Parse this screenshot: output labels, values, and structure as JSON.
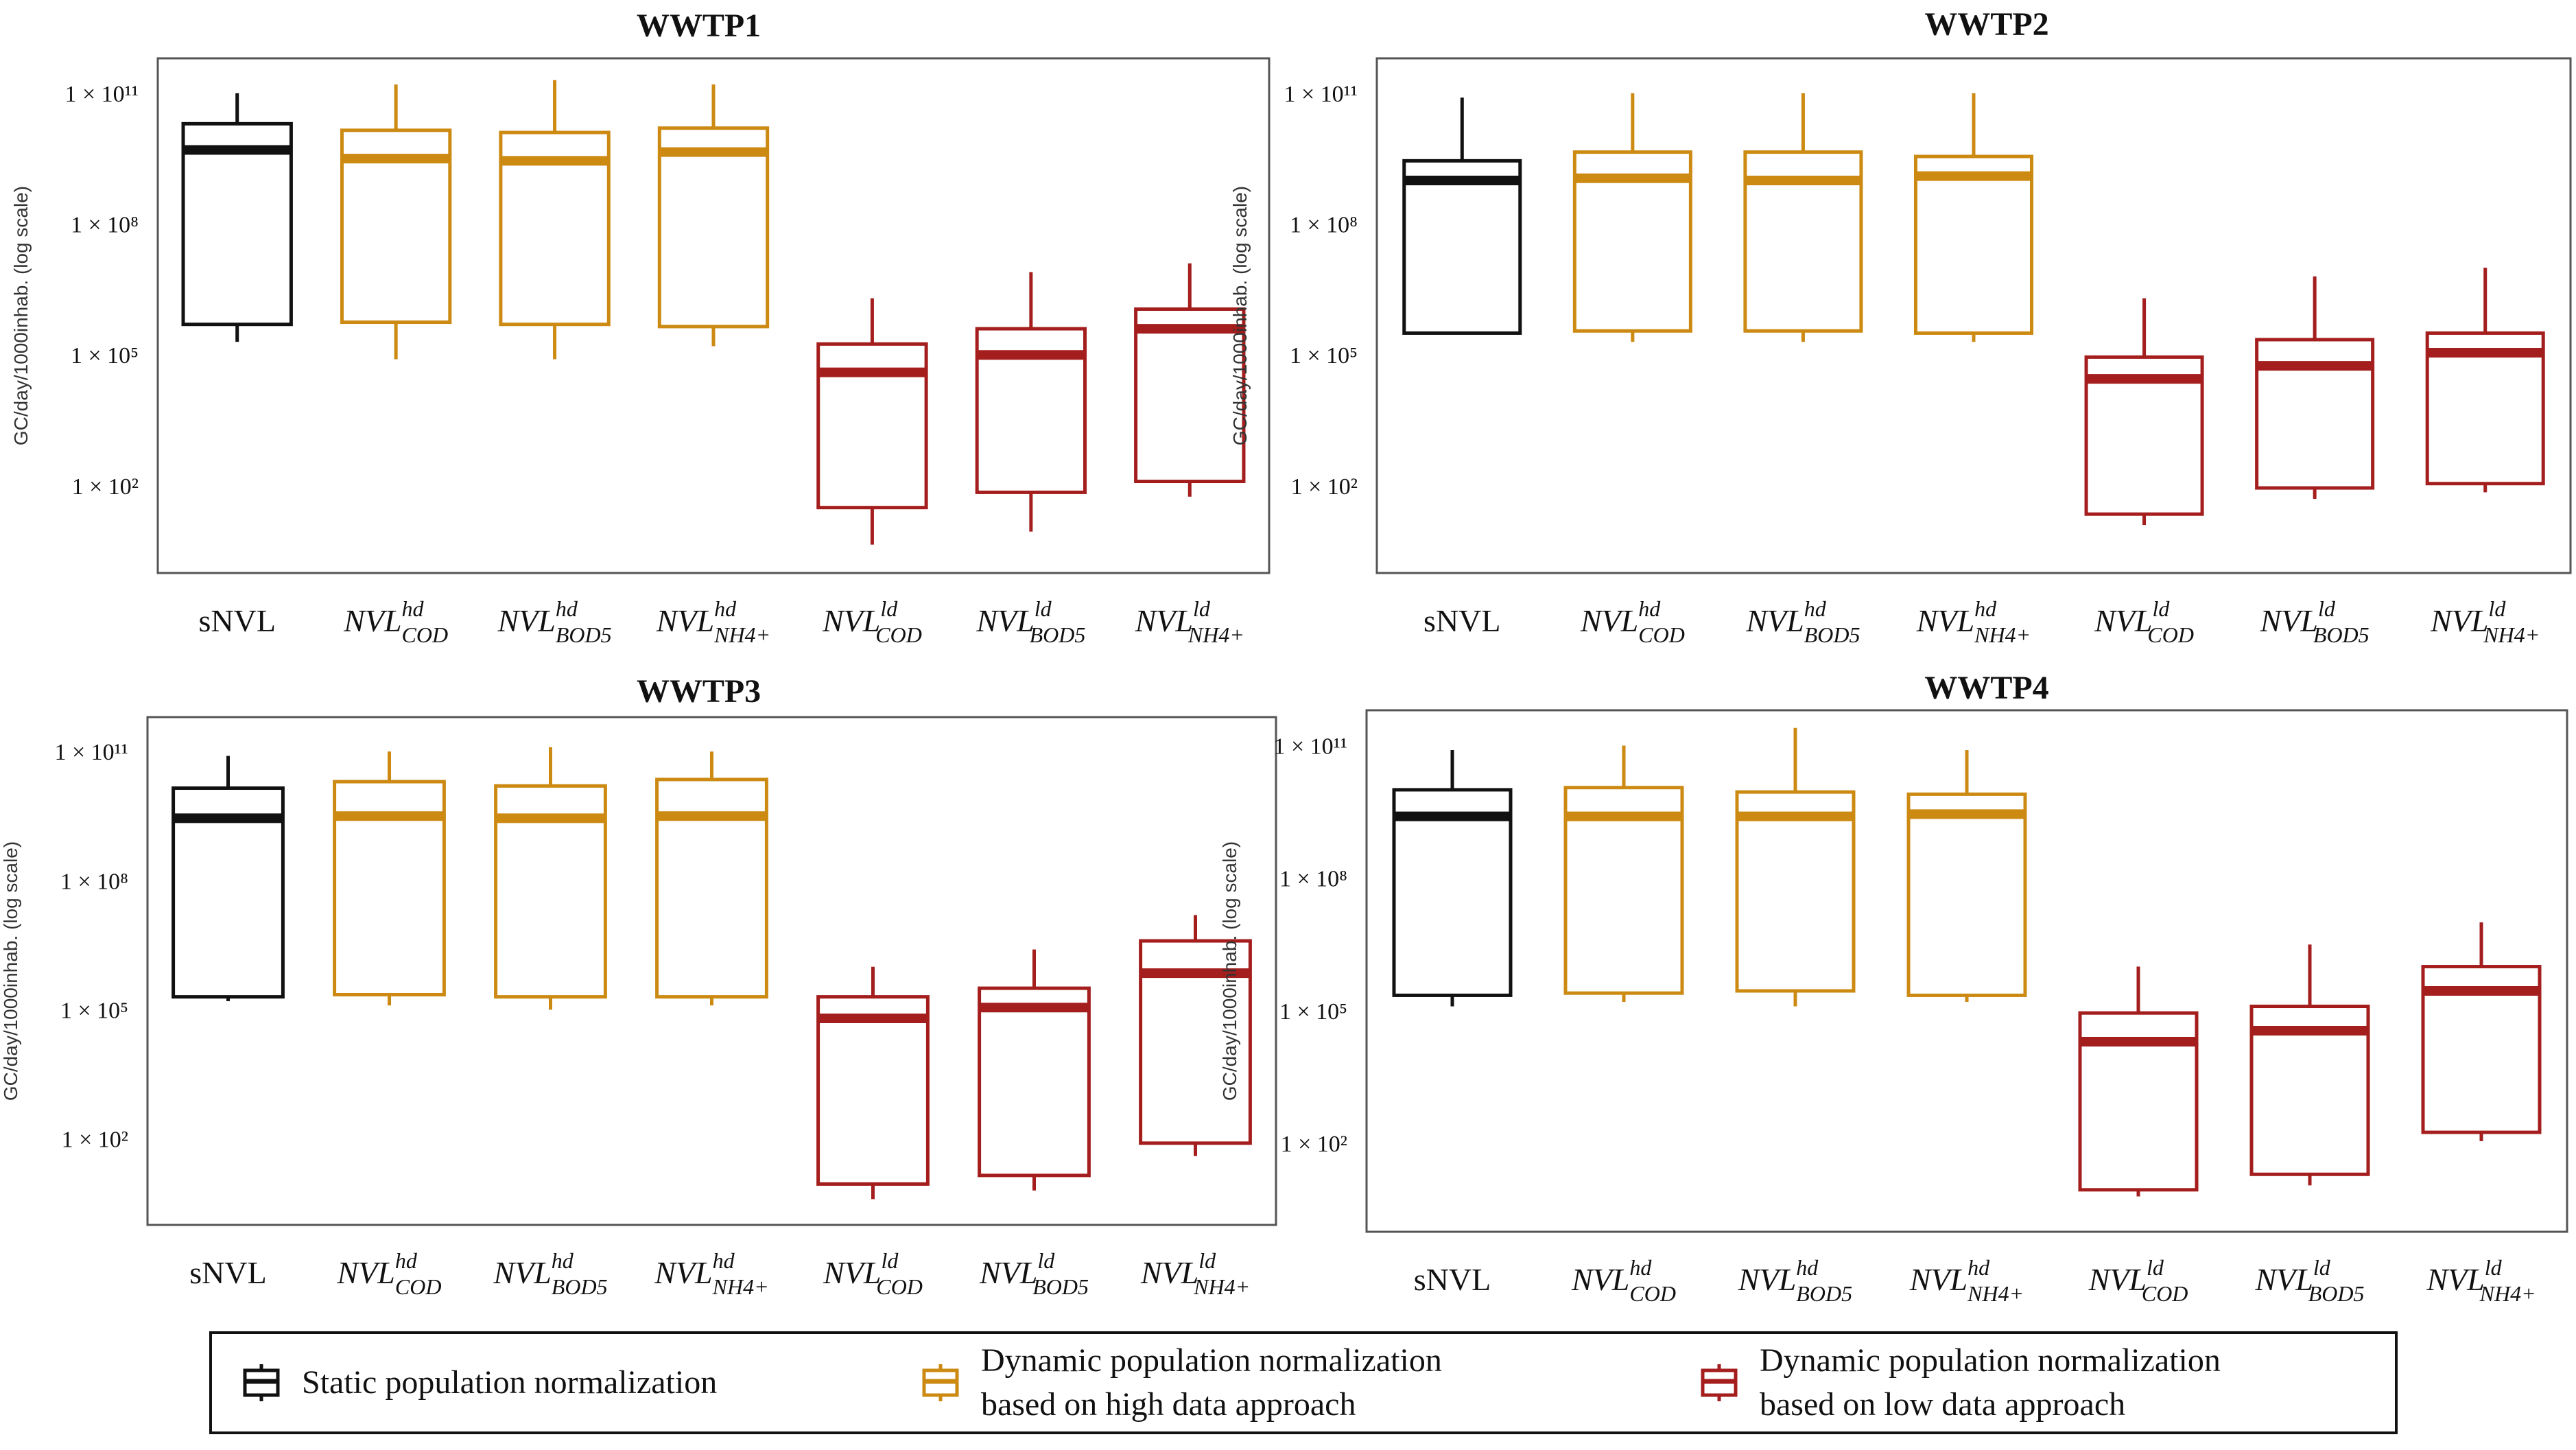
{
  "colors": {
    "static": "#111111",
    "high": "#CC8A12",
    "low": "#A51E1E",
    "axis": "#555555"
  },
  "chart_data": [
    {
      "type": "box",
      "title": "WWTP1",
      "ylabel": "GC/day/1000inhab. (log scale)",
      "yscale": "log10",
      "ylim_log10": [
        0.0,
        11.8
      ],
      "ytick_values_log10": [
        11,
        8,
        5,
        2
      ],
      "ytick_labels": [
        "1 × 10¹¹",
        "1 × 10⁸",
        "1 × 10⁵",
        "1 × 10²"
      ],
      "legend_position": "bottom",
      "categories": [
        {
          "base": "sNVL",
          "sup": "",
          "sub": "",
          "group": "static"
        },
        {
          "base": "NVL",
          "sup": "hd",
          "sub": "COD",
          "group": "high"
        },
        {
          "base": "NVL",
          "sup": "hd",
          "sub": "BOD5",
          "group": "high"
        },
        {
          "base": "NVL",
          "sup": "hd",
          "sub": "NH4+",
          "group": "high"
        },
        {
          "base": "NVL",
          "sup": "ld",
          "sub": "COD",
          "group": "low"
        },
        {
          "base": "NVL",
          "sup": "ld",
          "sub": "BOD5",
          "group": "low"
        },
        {
          "base": "NVL",
          "sup": "ld",
          "sub": "NH4+",
          "group": "low"
        }
      ],
      "series_log10": [
        {
          "whisker_low": 5.3,
          "q1": 5.7,
          "median": 9.7,
          "q3": 10.3,
          "whisker_high": 11.0
        },
        {
          "whisker_low": 4.9,
          "q1": 5.75,
          "median": 9.5,
          "q3": 10.15,
          "whisker_high": 11.2
        },
        {
          "whisker_low": 4.9,
          "q1": 5.7,
          "median": 9.45,
          "q3": 10.1,
          "whisker_high": 11.3
        },
        {
          "whisker_low": 5.2,
          "q1": 5.65,
          "median": 9.65,
          "q3": 10.2,
          "whisker_high": 11.2
        },
        {
          "whisker_low": 0.65,
          "q1": 1.5,
          "median": 4.6,
          "q3": 5.25,
          "whisker_high": 6.3
        },
        {
          "whisker_low": 0.95,
          "q1": 1.85,
          "median": 5.0,
          "q3": 5.6,
          "whisker_high": 6.9
        },
        {
          "whisker_low": 1.75,
          "q1": 2.1,
          "median": 5.6,
          "q3": 6.05,
          "whisker_high": 7.1
        }
      ]
    },
    {
      "type": "box",
      "title": "WWTP2",
      "ylabel": "GC/day/1000inhab. (log scale)",
      "yscale": "log10",
      "ylim_log10": [
        0.0,
        11.8
      ],
      "ytick_values_log10": [
        11,
        8,
        5,
        2
      ],
      "ytick_labels": [
        "1 × 10¹¹",
        "1 × 10⁸",
        "1 × 10⁵",
        "1 × 10²"
      ],
      "legend_position": "bottom",
      "categories": [
        {
          "base": "sNVL",
          "sup": "",
          "sub": "",
          "group": "static"
        },
        {
          "base": "NVL",
          "sup": "hd",
          "sub": "COD",
          "group": "high"
        },
        {
          "base": "NVL",
          "sup": "hd",
          "sub": "BOD5",
          "group": "high"
        },
        {
          "base": "NVL",
          "sup": "hd",
          "sub": "NH4+",
          "group": "high"
        },
        {
          "base": "NVL",
          "sup": "ld",
          "sub": "COD",
          "group": "low"
        },
        {
          "base": "NVL",
          "sup": "ld",
          "sub": "BOD5",
          "group": "low"
        },
        {
          "base": "NVL",
          "sup": "ld",
          "sub": "NH4+",
          "group": "low"
        }
      ],
      "series_log10": [
        {
          "whisker_low": 5.5,
          "q1": 5.5,
          "median": 9.0,
          "q3": 9.45,
          "whisker_high": 10.9
        },
        {
          "whisker_low": 5.3,
          "q1": 5.55,
          "median": 9.05,
          "q3": 9.65,
          "whisker_high": 11.0
        },
        {
          "whisker_low": 5.3,
          "q1": 5.55,
          "median": 9.0,
          "q3": 9.65,
          "whisker_high": 11.0
        },
        {
          "whisker_low": 5.3,
          "q1": 5.5,
          "median": 9.1,
          "q3": 9.55,
          "whisker_high": 11.0
        },
        {
          "whisker_low": 1.1,
          "q1": 1.35,
          "median": 4.45,
          "q3": 4.95,
          "whisker_high": 6.3
        },
        {
          "whisker_low": 1.7,
          "q1": 1.95,
          "median": 4.75,
          "q3": 5.35,
          "whisker_high": 6.8
        },
        {
          "whisker_low": 1.85,
          "q1": 2.05,
          "median": 5.05,
          "q3": 5.5,
          "whisker_high": 7.0
        }
      ]
    },
    {
      "type": "box",
      "title": "WWTP3",
      "ylabel": "GC/day/1000inhab. (log scale)",
      "yscale": "log10",
      "ylim_log10": [
        0.0,
        11.8
      ],
      "ytick_values_log10": [
        11,
        8,
        5,
        2
      ],
      "ytick_labels": [
        "1 × 10¹¹",
        "1 × 10⁸",
        "1 × 10⁵",
        "1 × 10²"
      ],
      "legend_position": "bottom",
      "categories": [
        {
          "base": "sNVL",
          "sup": "",
          "sub": "",
          "group": "static"
        },
        {
          "base": "NVL",
          "sup": "hd",
          "sub": "COD",
          "group": "high"
        },
        {
          "base": "NVL",
          "sup": "hd",
          "sub": "BOD5",
          "group": "high"
        },
        {
          "base": "NVL",
          "sup": "hd",
          "sub": "NH4+",
          "group": "high"
        },
        {
          "base": "NVL",
          "sup": "ld",
          "sub": "COD",
          "group": "low"
        },
        {
          "base": "NVL",
          "sup": "ld",
          "sub": "BOD5",
          "group": "low"
        },
        {
          "base": "NVL",
          "sup": "ld",
          "sub": "NH4+",
          "group": "low"
        }
      ],
      "series_log10": [
        {
          "whisker_low": 5.2,
          "q1": 5.3,
          "median": 9.45,
          "q3": 10.15,
          "whisker_high": 10.9
        },
        {
          "whisker_low": 5.1,
          "q1": 5.35,
          "median": 9.5,
          "q3": 10.3,
          "whisker_high": 11.0
        },
        {
          "whisker_low": 5.0,
          "q1": 5.3,
          "median": 9.45,
          "q3": 10.2,
          "whisker_high": 11.1
        },
        {
          "whisker_low": 5.1,
          "q1": 5.3,
          "median": 9.5,
          "q3": 10.35,
          "whisker_high": 11.0
        },
        {
          "whisker_low": 0.6,
          "q1": 0.95,
          "median": 4.8,
          "q3": 5.3,
          "whisker_high": 6.0
        },
        {
          "whisker_low": 0.8,
          "q1": 1.15,
          "median": 5.05,
          "q3": 5.5,
          "whisker_high": 6.4
        },
        {
          "whisker_low": 1.6,
          "q1": 1.9,
          "median": 5.85,
          "q3": 6.6,
          "whisker_high": 7.2
        }
      ]
    },
    {
      "type": "box",
      "title": "WWTP4",
      "ylabel": "GC/day/1000inhab. (log scale)",
      "yscale": "log10",
      "ylim_log10": [
        0.0,
        11.8
      ],
      "ytick_values_log10": [
        11,
        8,
        5,
        2
      ],
      "ytick_labels": [
        "1 × 10¹¹",
        "1 × 10⁸",
        "1 × 10⁵",
        "1 × 10²"
      ],
      "legend_position": "bottom",
      "categories": [
        {
          "base": "sNVL",
          "sup": "",
          "sub": "",
          "group": "static"
        },
        {
          "base": "NVL",
          "sup": "hd",
          "sub": "COD",
          "group": "high"
        },
        {
          "base": "NVL",
          "sup": "hd",
          "sub": "BOD5",
          "group": "high"
        },
        {
          "base": "NVL",
          "sup": "hd",
          "sub": "NH4+",
          "group": "high"
        },
        {
          "base": "NVL",
          "sup": "ld",
          "sub": "COD",
          "group": "low"
        },
        {
          "base": "NVL",
          "sup": "ld",
          "sub": "BOD5",
          "group": "low"
        },
        {
          "base": "NVL",
          "sup": "ld",
          "sub": "NH4+",
          "group": "low"
        }
      ],
      "series_log10": [
        {
          "whisker_low": 5.1,
          "q1": 5.35,
          "median": 9.4,
          "q3": 10.0,
          "whisker_high": 10.9
        },
        {
          "whisker_low": 5.2,
          "q1": 5.4,
          "median": 9.4,
          "q3": 10.05,
          "whisker_high": 11.0
        },
        {
          "whisker_low": 5.1,
          "q1": 5.45,
          "median": 9.4,
          "q3": 9.95,
          "whisker_high": 11.4
        },
        {
          "whisker_low": 5.2,
          "q1": 5.35,
          "median": 9.45,
          "q3": 9.9,
          "whisker_high": 10.9
        },
        {
          "whisker_low": 0.8,
          "q1": 0.95,
          "median": 4.3,
          "q3": 4.95,
          "whisker_high": 6.0
        },
        {
          "whisker_low": 1.05,
          "q1": 1.3,
          "median": 4.55,
          "q3": 5.1,
          "whisker_high": 6.5
        },
        {
          "whisker_low": 2.05,
          "q1": 2.25,
          "median": 5.45,
          "q3": 6.0,
          "whisker_high": 7.0
        }
      ]
    }
  ],
  "legend": {
    "items": [
      {
        "group": "static",
        "lines": [
          "Static population normalization"
        ]
      },
      {
        "group": "high",
        "lines": [
          "Dynamic population normalization",
          "based on high data approach"
        ]
      },
      {
        "group": "low",
        "lines": [
          "Dynamic population normalization",
          "based on low data approach"
        ]
      }
    ]
  }
}
